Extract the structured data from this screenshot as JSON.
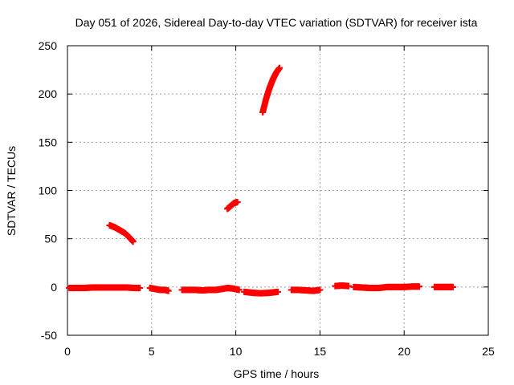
{
  "chart_data": {
    "type": "scatter",
    "title": "Day 051 of 2026, Sidereal Day-to-day VTEC variation (SDTVAR) for receiver ista",
    "xlabel": "GPS time / hours",
    "ylabel": "SDTVAR / TECUs",
    "xlim": [
      0,
      25
    ],
    "ylim": [
      -50,
      250
    ],
    "xticks": [
      "0",
      "5",
      "10",
      "15",
      "20",
      "25"
    ],
    "yticks": [
      "-50",
      "0",
      "50",
      "100",
      "150",
      "200",
      "250"
    ],
    "grid": true,
    "marker": "+",
    "color": "#ff0000",
    "series": [
      {
        "segments": [
          {
            "x": [
              0.1,
              0.5,
              1.0,
              1.5,
              2.0,
              2.5,
              3.0,
              3.5,
              4.0,
              4.3
            ],
            "y": [
              -1,
              -1,
              -1,
              -0.5,
              -0.5,
              -0.5,
              -0.5,
              -0.5,
              -1,
              -1
            ]
          },
          {
            "x": [
              4.9,
              5.2,
              5.5,
              5.8,
              6.0
            ],
            "y": [
              -1,
              -2,
              -3,
              -3,
              -4
            ]
          },
          {
            "x": [
              6.8,
              7.2,
              7.6,
              8.0,
              8.4,
              8.8,
              9.2,
              9.5,
              9.8,
              10.2
            ],
            "y": [
              -3,
              -3,
              -3,
              -3.5,
              -3,
              -3,
              -2,
              -1,
              -1.5,
              -3
            ]
          },
          {
            "x": [
              10.5,
              11.0,
              11.5,
              12.0,
              12.5
            ],
            "y": [
              -5,
              -6,
              -6.5,
              -6,
              -5
            ]
          },
          {
            "x": [
              13.3,
              13.7,
              14.2,
              14.6,
              15.0
            ],
            "y": [
              -3,
              -3,
              -3.5,
              -4,
              -3
            ]
          },
          {
            "x": [
              15.9,
              16.3,
              16.7
            ],
            "y": [
              1,
              1.5,
              1
            ]
          },
          {
            "x": [
              17.0,
              17.5,
              18.0,
              18.5,
              19.0,
              19.5,
              20.0,
              20.5,
              20.9
            ],
            "y": [
              0,
              -0.5,
              -1,
              -1,
              0,
              0,
              0,
              0.5,
              0.5
            ]
          },
          {
            "x": [
              21.8,
              22.2,
              22.6,
              22.9
            ],
            "y": [
              0,
              0,
              0,
              0
            ]
          },
          {
            "x": [
              2.5,
              2.8,
              3.1,
              3.4,
              3.7,
              3.9
            ],
            "y": [
              64,
              62,
              59,
              56,
              51,
              47
            ]
          },
          {
            "x": [
              9.5,
              9.7,
              9.9,
              10.1
            ],
            "y": [
              81,
              84,
              87,
              88
            ]
          },
          {
            "x": [
              11.6,
              11.8,
              12.0,
              12.2,
              12.4,
              12.6
            ],
            "y": [
              181,
              195,
              206,
              215,
              222,
              227
            ]
          }
        ]
      }
    ]
  }
}
